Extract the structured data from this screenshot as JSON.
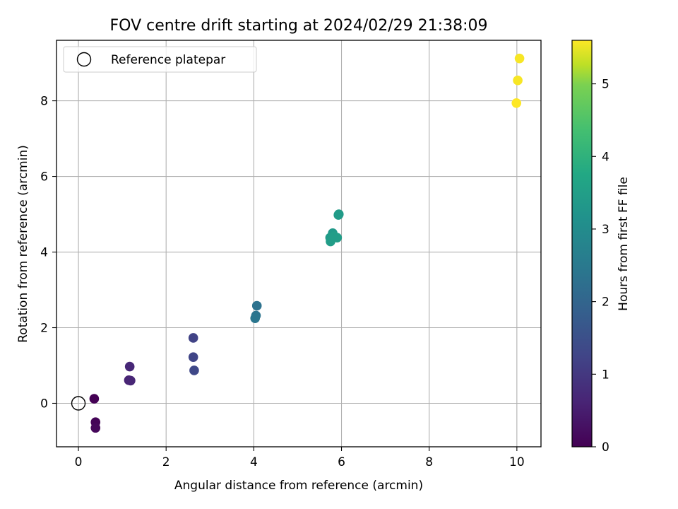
{
  "chart_data": {
    "type": "scatter",
    "title": "FOV centre drift starting at 2024/02/29 21:38:09",
    "xlabel": "Angular distance from reference (arcmin)",
    "ylabel": "Rotation from reference (arcmin)",
    "xlim": [
      -0.5,
      10.55
    ],
    "ylim": [
      -1.15,
      9.6
    ],
    "xticks": [
      0,
      2,
      4,
      6,
      8,
      10
    ],
    "yticks": [
      0,
      2,
      4,
      6,
      8
    ],
    "grid": true,
    "legend": {
      "placement": "top-left",
      "entries": [
        "Reference platepar"
      ]
    },
    "reference": {
      "x": 0,
      "y": 0
    },
    "colorbar": {
      "label": "Hours from first FF file",
      "range": [
        0,
        5.6
      ],
      "ticks": [
        0,
        1,
        2,
        3,
        4,
        5
      ],
      "colormap": "viridis"
    },
    "points": [
      {
        "x": 0.36,
        "y": 0.12,
        "h": 0.0
      },
      {
        "x": 0.39,
        "y": -0.5,
        "h": 0.05
      },
      {
        "x": 0.39,
        "y": -0.65,
        "h": 0.1
      },
      {
        "x": 1.17,
        "y": 0.97,
        "h": 0.62
      },
      {
        "x": 1.15,
        "y": 0.61,
        "h": 0.55
      },
      {
        "x": 1.19,
        "y": 0.6,
        "h": 0.6
      },
      {
        "x": 2.62,
        "y": 1.73,
        "h": 1.1
      },
      {
        "x": 2.62,
        "y": 1.22,
        "h": 1.15
      },
      {
        "x": 2.64,
        "y": 0.87,
        "h": 1.2
      },
      {
        "x": 4.07,
        "y": 2.58,
        "h": 2.1
      },
      {
        "x": 4.05,
        "y": 2.32,
        "h": 2.15
      },
      {
        "x": 4.03,
        "y": 2.25,
        "h": 2.2
      },
      {
        "x": 5.93,
        "y": 4.98,
        "h": 3.05
      },
      {
        "x": 5.94,
        "y": 5.0,
        "h": 3.05
      },
      {
        "x": 5.8,
        "y": 4.5,
        "h": 3.0
      },
      {
        "x": 5.74,
        "y": 4.38,
        "h": 3.05
      },
      {
        "x": 5.75,
        "y": 4.28,
        "h": 3.1
      },
      {
        "x": 5.83,
        "y": 4.42,
        "h": 3.1
      },
      {
        "x": 5.9,
        "y": 4.38,
        "h": 3.1
      },
      {
        "x": 10.06,
        "y": 9.12,
        "h": 5.55
      },
      {
        "x": 10.02,
        "y": 8.54,
        "h": 5.55
      },
      {
        "x": 9.99,
        "y": 7.94,
        "h": 5.6
      }
    ]
  }
}
